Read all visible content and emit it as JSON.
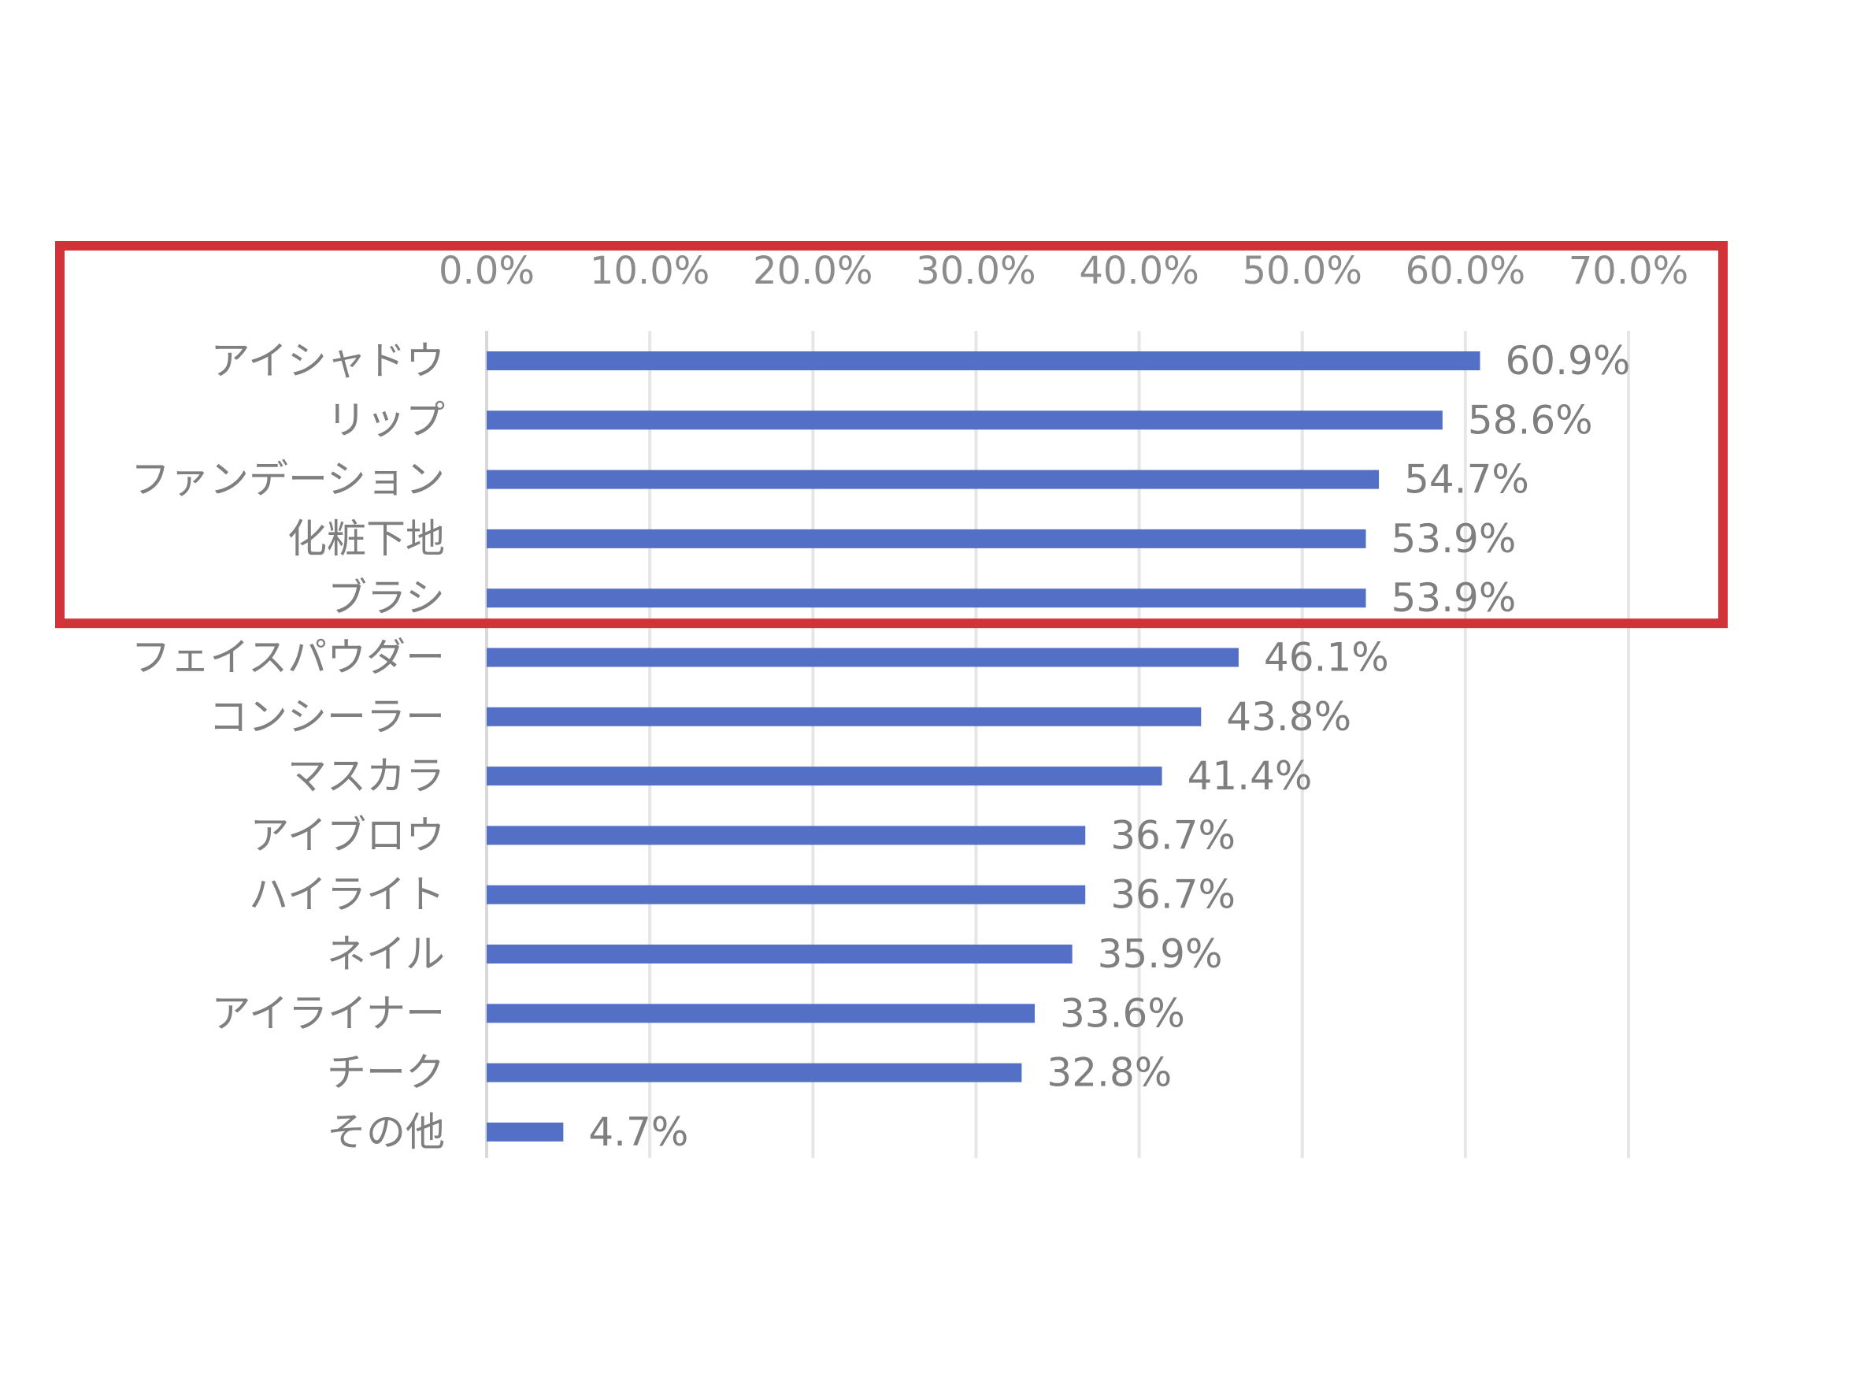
{
  "chart_data": {
    "type": "bar",
    "orientation": "horizontal",
    "title": "",
    "xlabel": "",
    "ylabel": "",
    "xlim": [
      0,
      70
    ],
    "x_ticks": [
      0,
      10,
      20,
      30,
      40,
      50,
      60,
      70
    ],
    "x_tick_labels": [
      "0.0%",
      "10.0%",
      "20.0%",
      "30.0%",
      "40.0%",
      "50.0%",
      "60.0%",
      "70.0%"
    ],
    "x_axis_position": "top",
    "grid": true,
    "legend": "none",
    "categories": [
      "アイシャドウ",
      "リップ",
      "ファンデーション",
      "化粧下地",
      "ブラシ",
      "フェイスパウダー",
      "コンシーラー",
      "マスカラ",
      "アイブロウ",
      "ハイライト",
      "ネイル",
      "アイライナー",
      "チーク",
      "その他"
    ],
    "values": [
      60.9,
      58.6,
      54.7,
      53.9,
      53.9,
      46.1,
      43.8,
      41.4,
      36.7,
      36.7,
      35.9,
      33.6,
      32.8,
      4.7
    ],
    "data_labels": [
      "60.9%",
      "58.6%",
      "54.7%",
      "53.9%",
      "53.9%",
      "46.1%",
      "43.8%",
      "41.4%",
      "36.7%",
      "36.7%",
      "35.9%",
      "33.6%",
      "32.8%",
      "4.7%"
    ],
    "bar_color": "#5470c6",
    "gridline_color": "#e6e6e6",
    "text_color": "#7f7f7f",
    "highlight_box": {
      "color": "#d13438",
      "covers_categories": [
        "アイシャドウ",
        "リップ",
        "ファンデーション",
        "化粧下地",
        "ブラシ"
      ]
    }
  }
}
